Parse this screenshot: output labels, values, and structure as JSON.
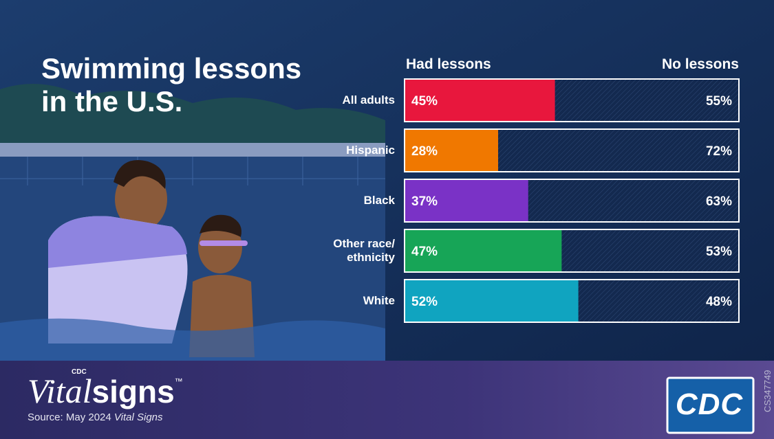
{
  "chart_data": {
    "type": "stacked-bar",
    "title": "Swimming lessons in the U.S.",
    "categories": [
      "All adults",
      "Hispanic",
      "Black",
      "Other race/ ethnicity",
      "White"
    ],
    "series": [
      {
        "name": "Had lessons",
        "colors": [
          "#e8173d",
          "#f07800",
          "#7a32c6",
          "#17a557",
          "#10a4c0"
        ],
        "values": [
          45,
          28,
          37,
          47,
          52
        ],
        "value_labels": [
          "45%",
          "28%",
          "37%",
          "47%",
          "52%"
        ]
      },
      {
        "name": "No lessons",
        "color": "#13294f",
        "values": [
          55,
          72,
          63,
          53,
          48
        ],
        "value_labels": [
          "55%",
          "72%",
          "63%",
          "53%",
          "48%"
        ]
      }
    ],
    "footer": {
      "brand_prefix": "CDC",
      "brand_italic": "Vital",
      "brand": "signs",
      "trademark": "™",
      "source": "Source: May 2024",
      "source_italic": "Vital Signs",
      "logo": "CDC",
      "code": "CS347749"
    }
  }
}
